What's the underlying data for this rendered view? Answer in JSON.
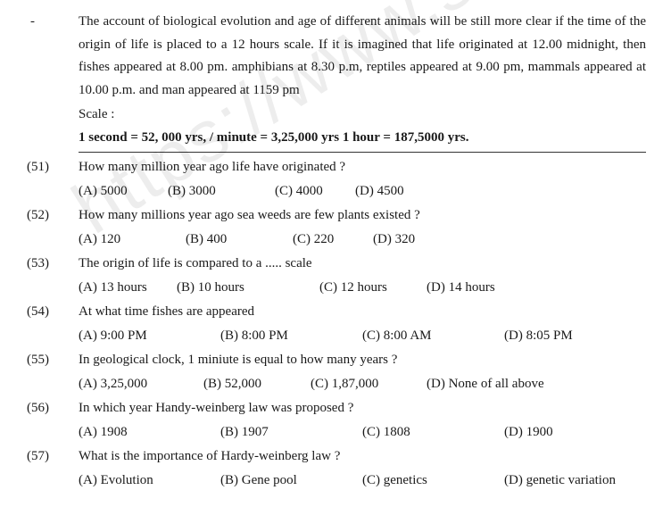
{
  "watermark": "https://www.st",
  "intro": {
    "dash": "-",
    "text": "The account of biological evolution and age of different animals will be still more clear if the time of the origin of life is placed to a 12 hours scale. If it is imagined that life originated at 12.00 midnight, then fishes appeared at 8.00 pm. amphibians at 8.30 p.m, reptiles appeared at 9.00 pm, mammals appeared at 10.00 p.m. and man appeared at 1159 pm",
    "scale_label": "Scale :",
    "scale_line": "1 second = 52, 000 yrs, / minute = 3,25,000 yrs 1 hour = 187,5000 yrs."
  },
  "q51": {
    "num": "(51)",
    "text": "How many million year ago life have originated ?",
    "a": "(A) 5000",
    "b": "(B) 3000",
    "c": "(C) 4000",
    "d": "(D) 4500"
  },
  "q52": {
    "num": "(52)",
    "text": "How many millions year ago sea weeds are few plants existed ?",
    "a": "(A) 120",
    "b": "(B) 400",
    "c": "(C) 220",
    "d": "(D) 320"
  },
  "q53": {
    "num": "(53)",
    "text": "The origin of life is compared to a ..... scale",
    "a": "(A) 13 hours",
    "b": "(B) 10 hours",
    "c": "(C) 12 hours",
    "d": "(D) 14 hours"
  },
  "q54": {
    "num": "(54)",
    "text": "At what time fishes are appeared",
    "a": "(A) 9:00 PM",
    "b": "(B) 8:00 PM",
    "c": "(C) 8:00 AM",
    "d": "(D) 8:05 PM"
  },
  "q55": {
    "num": "(55)",
    "text": "In geological clock, 1 miniute is equal to how many years ?",
    "a": "(A) 3,25,000",
    "b": "(B) 52,000",
    "c": "(C) 1,87,000",
    "d": "(D) None of all above"
  },
  "q56": {
    "num": "(56)",
    "text": "In which year Handy-weinberg law was proposed ?",
    "a": "(A) 1908",
    "b": "(B) 1907",
    "c": "(C) 1808",
    "d": "(D) 1900"
  },
  "q57": {
    "num": "(57)",
    "text": "What is the importance of Hardy-weinberg law ?",
    "a": "(A) Evolution",
    "b": "(B) Gene pool",
    "c": "(C) genetics",
    "d": "(D) genetic variation"
  }
}
